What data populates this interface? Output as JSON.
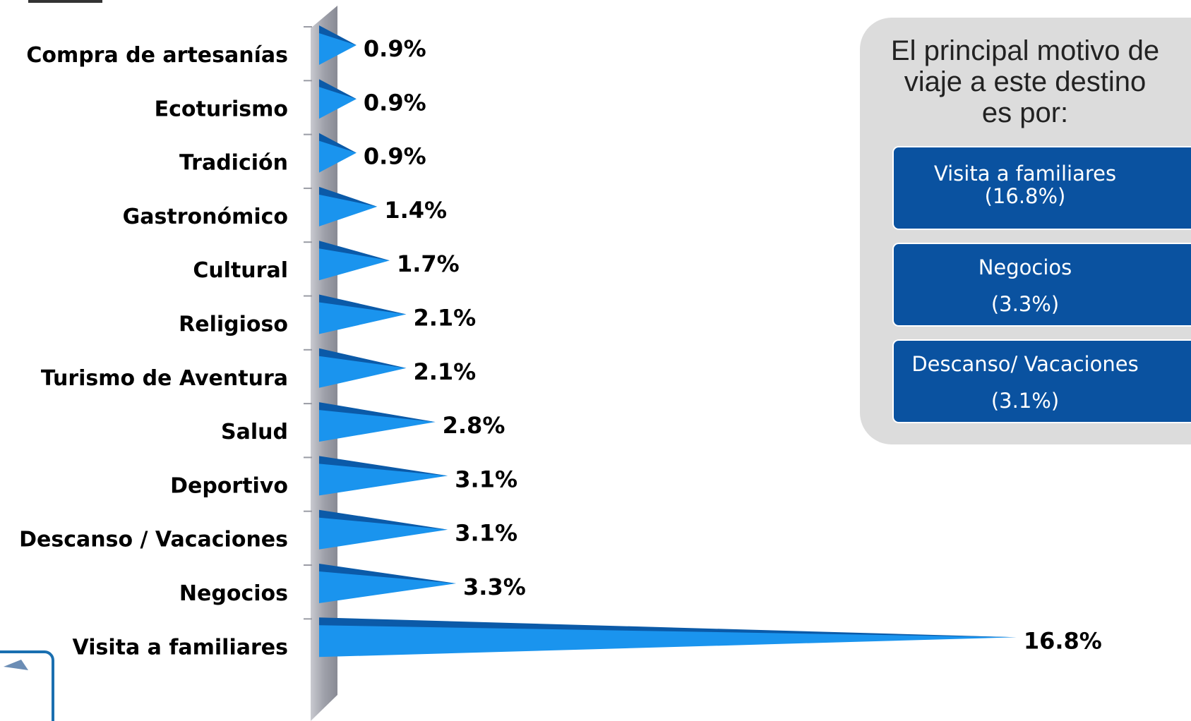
{
  "chart_data": {
    "type": "bar",
    "orientation": "horizontal",
    "categories": [
      "Compra de artesanías",
      "Ecoturismo",
      "Tradición",
      "Gastronómico",
      "Cultural",
      "Religioso",
      "Turismo de Aventura",
      "Salud",
      "Deportivo",
      "Descanso / Vacaciones",
      "Negocios",
      "Visita a familiares"
    ],
    "values": [
      0.9,
      0.9,
      0.9,
      1.4,
      1.7,
      2.1,
      2.1,
      2.8,
      3.1,
      3.1,
      3.3,
      16.8
    ],
    "value_labels": [
      "0.9%",
      "0.9%",
      "0.9%",
      "1.4%",
      "1.7%",
      "2.1%",
      "2.1%",
      "2.8%",
      "3.1%",
      "3.1%",
      "3.3%",
      "16.8%"
    ],
    "color": "#1a94ee",
    "shade_color": "#0b5aa8",
    "xlim": [
      0,
      17.5
    ]
  },
  "panel": {
    "title_lines": [
      "El principal motivo de",
      "viaje a este destino",
      "es por:"
    ],
    "items": [
      {
        "name": "Visita a familiares",
        "value_label": "(16.8%)"
      },
      {
        "name": "Negocios",
        "value_label": "(3.3%)"
      },
      {
        "name": "Descanso/ Vacaciones",
        "value_label": "(3.1%)"
      }
    ]
  }
}
